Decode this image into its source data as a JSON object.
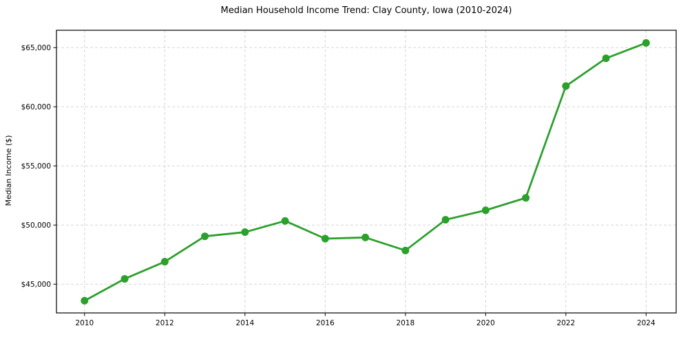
{
  "chart_data": {
    "type": "line",
    "title": "Median Household Income Trend: Clay County, Iowa (2010-2024)",
    "xlabel": "",
    "ylabel": "Median Income ($)",
    "x": [
      2010,
      2011,
      2012,
      2013,
      2014,
      2015,
      2016,
      2017,
      2018,
      2019,
      2020,
      2021,
      2022,
      2023,
      2024
    ],
    "series": [
      {
        "name": "Median Household Income",
        "values": [
          43600,
          45450,
          46900,
          49050,
          49400,
          50350,
          48850,
          48950,
          47850,
          50450,
          51250,
          52300,
          61750,
          64100,
          65400
        ],
        "color": "#2ca02c",
        "marker": "circle"
      }
    ],
    "xticks": {
      "values": [
        2010,
        2012,
        2014,
        2016,
        2018,
        2020,
        2022,
        2024
      ],
      "labels": [
        "2010",
        "2012",
        "2014",
        "2016",
        "2018",
        "2020",
        "2022",
        "2024"
      ]
    },
    "yticks": {
      "values": [
        45000,
        50000,
        55000,
        60000,
        65000
      ],
      "labels": [
        "$45,000",
        "$50,000",
        "$55,000",
        "$60,000",
        "$65,000"
      ]
    },
    "xlim": [
      2009.3,
      2024.75
    ],
    "ylim": [
      42570,
      66470
    ],
    "grid": true,
    "legend": false,
    "grid_color": "#d5d5d5",
    "axis_color": "#000000",
    "background_color": "#ffffff"
  }
}
